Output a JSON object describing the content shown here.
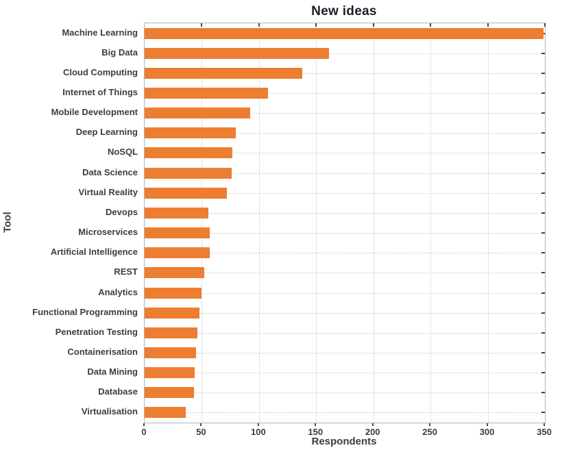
{
  "chart_data": {
    "type": "bar",
    "orientation": "horizontal",
    "title": "New ideas",
    "xlabel": "Respondents",
    "ylabel": "Tool",
    "categories": [
      "Machine Learning",
      "Big Data",
      "Cloud Computing",
      "Internet of Things",
      "Mobile Development",
      "Deep Learning",
      "NoSQL",
      "Data Science",
      "Virtual Reality",
      "Devops",
      "Microservices",
      "Artificial Intelligence",
      "REST",
      "Analytics",
      "Functional Programming",
      "Penetration Testing",
      "Containerisation",
      "Data Mining",
      "Database",
      "Virtualisation"
    ],
    "values": [
      349,
      161,
      138,
      108,
      92,
      80,
      77,
      76,
      72,
      56,
      57,
      57,
      52,
      50,
      48,
      46,
      45,
      44,
      43,
      36
    ],
    "xlim": [
      0,
      350
    ],
    "xticks": [
      0,
      50,
      100,
      150,
      200,
      250,
      300,
      350
    ],
    "grid": "dotted, both axes",
    "legend": "none",
    "bar_color": "#ED7D31",
    "colors": {
      "bar": "#ED7D31",
      "title_text": "#1c1c28",
      "label_text": "#3d3d3d",
      "spine": "#b3b3b3",
      "gridline": "#c9c9c9",
      "tick_mark": "#4a4a4a",
      "background": "#ffffff"
    }
  }
}
